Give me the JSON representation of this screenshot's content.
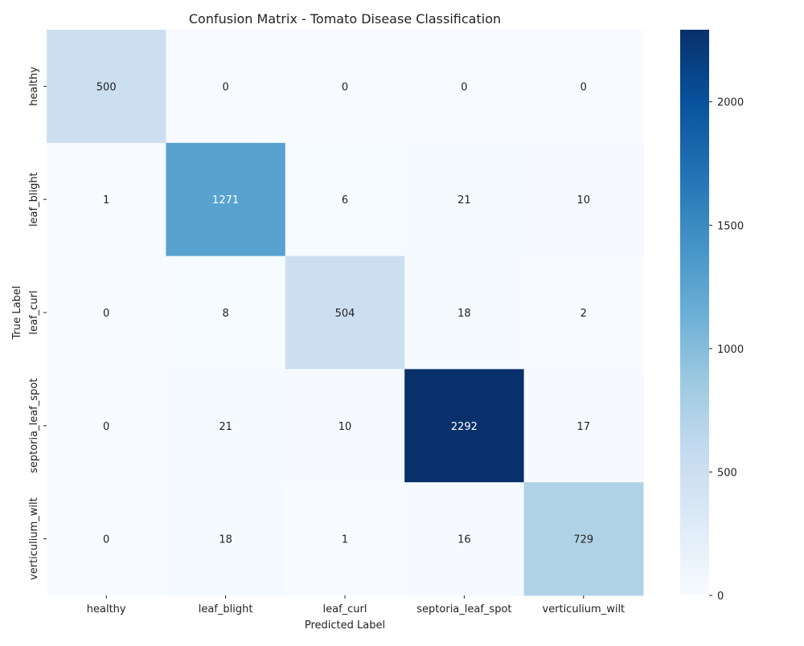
{
  "chart_data": {
    "type": "heatmap",
    "title": "Confusion Matrix - Tomato Disease Classification",
    "xlabel": "Predicted Label",
    "ylabel": "True Label",
    "x_categories": [
      "healthy",
      "leaf_blight",
      "leaf_curl",
      "septoria_leaf_spot",
      "verticulium_wilt"
    ],
    "y_categories": [
      "healthy",
      "leaf_blight",
      "leaf_curl",
      "septoria_leaf_spot",
      "verticulium_wilt"
    ],
    "matrix": [
      [
        500,
        0,
        0,
        0,
        0
      ],
      [
        1,
        1271,
        6,
        21,
        10
      ],
      [
        0,
        8,
        504,
        18,
        2
      ],
      [
        0,
        21,
        10,
        2292,
        17
      ],
      [
        0,
        18,
        1,
        16,
        729
      ]
    ],
    "colormap": "Blues",
    "colorbar": {
      "range": [
        0,
        2292
      ],
      "ticks": [
        "0",
        "500",
        "1000",
        "1500",
        "2000"
      ]
    }
  }
}
